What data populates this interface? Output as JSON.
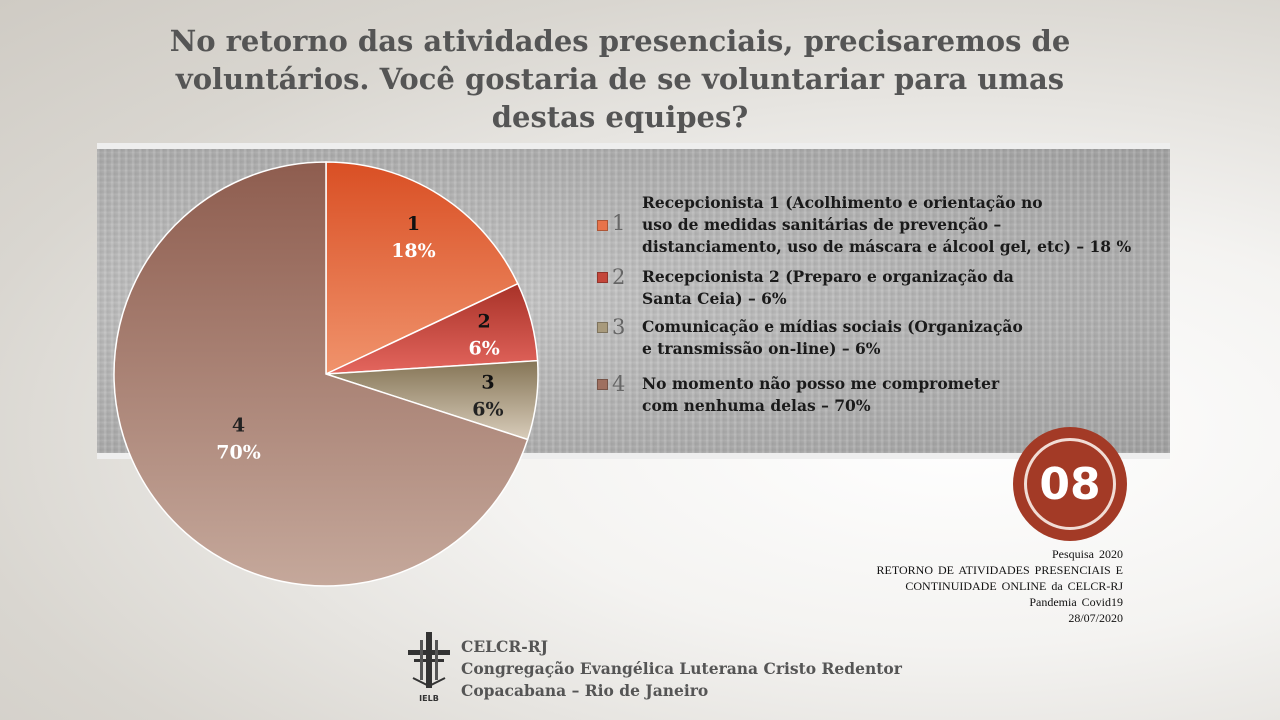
{
  "title": "No retorno das atividades presenciais, precisaremos de voluntários. Você gostaria de se voluntariar para umas destas equipes?",
  "chart_data": {
    "type": "pie",
    "title": "No retorno das atividades presenciais, precisaremos de voluntários. Você gostaria de se voluntariar para umas destas equipes?",
    "categories": [
      "1",
      "2",
      "3",
      "4"
    ],
    "values": [
      18,
      6,
      6,
      70
    ],
    "data_labels": [
      {
        "category": "1",
        "value": "18%"
      },
      {
        "category": "2",
        "value": "6%"
      },
      {
        "category": "3",
        "value": "6%"
      },
      {
        "category": "4",
        "value": "70%"
      }
    ],
    "colors": [
      [
        "#d94f24",
        "#f0936c"
      ],
      [
        "#a83228",
        "#e4665e"
      ],
      [
        "#857556",
        "#d8ccba"
      ],
      [
        "#8e5d4f",
        "#c5a89b"
      ]
    ],
    "legend_placement": "right",
    "legend": [
      {
        "num": "1",
        "text": "Recepcionista 1 (Acolhimento e orientação no\n uso de medidas sanitárias de prevenção –\ndistanciamento, uso de máscara e álcool gel, etc) – 18 %",
        "color": "#e8734a"
      },
      {
        "num": "2",
        "text": "Recepcionista 2 (Preparo e organização da\nSanta Ceia) – 6%",
        "color": "#c4463a"
      },
      {
        "num": "3",
        "text": "Comunicação e mídias sociais (Organização\ne transmissão on-line) – 6%",
        "color": "#a89a7c"
      },
      {
        "num": "4",
        "text": "No momento não posso me comprometer\ncom nenhuma delas – 70%",
        "color": "#9f7060"
      }
    ]
  },
  "badge": "08",
  "survey_info": [
    "Pesquisa  2020",
    "RETORNO  DE  ATIVIDADES  PRESENCIAIS  E",
    "CONTINUIDADE  ONLINE  da CELCR-RJ",
    "Pandemia  Covid19",
    "28/07/2020"
  ],
  "footer": {
    "logo_label": "IELB",
    "line1": "CELCR-RJ",
    "line2": "Congregação Evangélica Luterana Cristo Redentor",
    "line3": "Copacabana – Rio de Janeiro"
  }
}
